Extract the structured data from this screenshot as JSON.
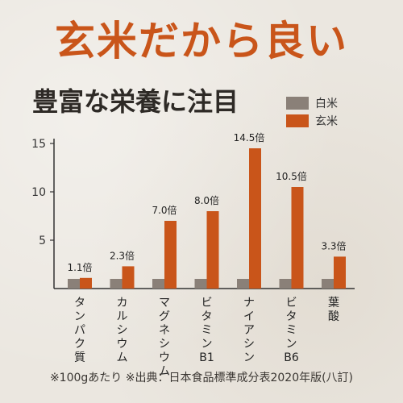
{
  "header": {
    "title": "玄米だから良い",
    "subtitle": "豊富な栄養に注目"
  },
  "colors": {
    "accent": "#c9551a",
    "white_rice": "#8a8078",
    "brown_rice": "#c9551a"
  },
  "footnote": "※100gあたり ※出典：日本食品標準成分表2020年版(八訂)",
  "chart_data": {
    "type": "bar",
    "categories": [
      "タンパク質",
      "カルシウム",
      "マグネシウム",
      "ビタミンB1",
      "ナイアシン",
      "ビタミンB6",
      "葉酸"
    ],
    "category_lines": [
      [
        "タ",
        "ン",
        "パ",
        "ク",
        "質"
      ],
      [
        "カ",
        "ル",
        "シ",
        "ウ",
        "ム"
      ],
      [
        "マ",
        "グ",
        "ネ",
        "シ",
        "ウ",
        "ム"
      ],
      [
        "ビ",
        "タ",
        "ミ",
        "ン",
        "B1"
      ],
      [
        "ナ",
        "イ",
        "ア",
        "シ",
        "ン"
      ],
      [
        "ビ",
        "タ",
        "ミ",
        "ン",
        "B6"
      ],
      [
        "葉",
        "酸"
      ]
    ],
    "series": [
      {
        "name": "白米",
        "values": [
          1,
          1,
          1,
          1,
          1,
          1,
          1
        ]
      },
      {
        "name": "玄米",
        "values": [
          1.1,
          2.3,
          7.0,
          8.0,
          14.5,
          10.5,
          3.3
        ]
      }
    ],
    "data_labels": [
      "1.1倍",
      "2.3倍",
      "7.0倍",
      "8.0倍",
      "14.5倍",
      "10.5倍",
      "3.3倍"
    ],
    "ylim": [
      0,
      15
    ],
    "yticks": [
      5,
      10,
      15
    ],
    "ytick_labels": [
      "5",
      "10",
      "15"
    ],
    "legend_position": "top-right",
    "grid": false
  }
}
